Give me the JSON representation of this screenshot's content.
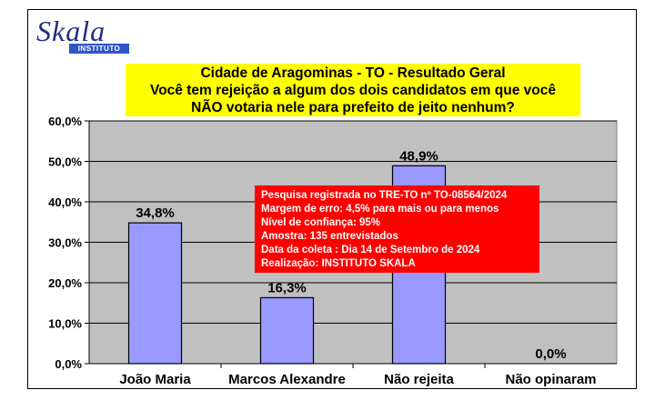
{
  "logo": {
    "name": "Skala",
    "subtitle": "INSTITUTO"
  },
  "title_lines": [
    "Cidade de Aragominas - TO - Resultado Geral",
    "Você tem rejeição a algum dos dois candidatos em que você",
    "NÃO votaria nele para prefeito de jeito nenhum?"
  ],
  "notice_lines": [
    "Pesquisa registrada no TRE-TO nº TO-08564/2024",
    "Margem de erro: 4,5% para mais ou para menos",
    "Nível de confiança: 95%",
    "Amostra: 135 entrevistados",
    "Data da coleta : Dia 14 de Setembro de 2024",
    "Realização: INSTITUTO SKALA"
  ],
  "colors": {
    "bar": "#9999ff",
    "plot_bg": "#c0c0c0",
    "title_bg": "#ffff00",
    "notice_bg": "#ff0000"
  },
  "chart_data": {
    "type": "bar",
    "categories": [
      "João Maria",
      "Marcos Alexandre",
      "Não rejeita",
      "Não opinaram"
    ],
    "values": [
      34.8,
      16.3,
      48.9,
      0.0
    ],
    "value_labels": [
      "34,8%",
      "16,3%",
      "48,9%",
      "0,0%"
    ],
    "ylim": [
      0,
      60
    ],
    "yticks": [
      0,
      10,
      20,
      30,
      40,
      50,
      60
    ],
    "ytick_labels": [
      "0,0%",
      "10,0%",
      "20,0%",
      "30,0%",
      "40,0%",
      "50,0%",
      "60,0%"
    ],
    "grid": true,
    "legend": "none"
  }
}
